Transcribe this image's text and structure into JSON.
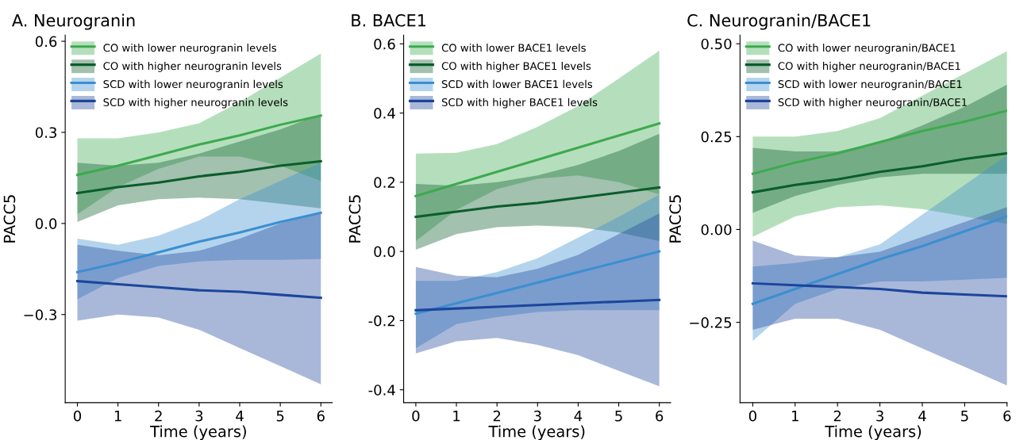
{
  "chart_data": [
    {
      "type": "line",
      "title": "A. Neurogranin",
      "xlabel": "Time (years)",
      "ylabel": "PACC5",
      "x": [
        0,
        1,
        2,
        3,
        4,
        5,
        6
      ],
      "xlim": [
        -0.3,
        6.28
      ],
      "xticks": [
        0,
        1,
        2,
        3,
        4,
        5,
        6
      ],
      "ylim": [
        -0.59,
        0.62
      ],
      "yticks": [
        {
          "value": 0.6,
          "label": "0.6"
        },
        {
          "value": 0.3,
          "label": "0.3"
        },
        {
          "value": 0.0,
          "label": "0.0"
        },
        {
          "value": -0.3,
          "label": "−0.3"
        }
      ],
      "legend": "top left",
      "grid": false,
      "series": [
        {
          "name": "CO with lower neurogranin levels",
          "color": "#3daa4f",
          "values": [
            0.16,
            0.19,
            0.225,
            0.26,
            0.29,
            0.325,
            0.355
          ],
          "lower": [
            0.03,
            0.12,
            0.18,
            0.22,
            0.22,
            0.19,
            0.14
          ],
          "upper": [
            0.28,
            0.28,
            0.3,
            0.33,
            0.4,
            0.48,
            0.56
          ]
        },
        {
          "name": "CO with higher neurogranin levels",
          "color": "#0b5d2c",
          "values": [
            0.1,
            0.12,
            0.135,
            0.155,
            0.17,
            0.19,
            0.205
          ],
          "lower": [
            0.005,
            0.06,
            0.08,
            0.085,
            0.08,
            0.065,
            0.05
          ],
          "upper": [
            0.2,
            0.19,
            0.2,
            0.23,
            0.27,
            0.31,
            0.36
          ]
        },
        {
          "name": "SCD with lower neurogranin levels",
          "color": "#3b8fd0",
          "values": [
            -0.16,
            -0.13,
            -0.095,
            -0.06,
            -0.03,
            0.005,
            0.035
          ],
          "lower": [
            -0.25,
            -0.18,
            -0.14,
            -0.125,
            -0.12,
            -0.12,
            -0.117
          ],
          "upper": [
            -0.05,
            -0.07,
            -0.04,
            0.01,
            0.08,
            0.14,
            0.2
          ]
        },
        {
          "name": "SCD with higher neurogranin levels",
          "color": "#1c459c",
          "values": [
            -0.19,
            -0.2,
            -0.21,
            -0.22,
            -0.225,
            -0.235,
            -0.245
          ],
          "lower": [
            -0.32,
            -0.3,
            -0.31,
            -0.35,
            -0.41,
            -0.47,
            -0.53
          ],
          "upper": [
            -0.07,
            -0.09,
            -0.105,
            -0.09,
            -0.05,
            0.0,
            0.04
          ]
        }
      ]
    },
    {
      "type": "line",
      "title": "B. BACE1",
      "xlabel": "Time (years)",
      "ylabel": "PACC5",
      "x": [
        0,
        1,
        2,
        3,
        4,
        5,
        6
      ],
      "xlim": [
        -0.3,
        6.28
      ],
      "xticks": [
        0,
        1,
        2,
        3,
        4,
        5,
        6
      ],
      "ylim": [
        -0.437,
        0.625
      ],
      "yticks": [
        {
          "value": 0.6,
          "label": "0.6"
        },
        {
          "value": 0.4,
          "label": "0.4"
        },
        {
          "value": 0.2,
          "label": "0.2"
        },
        {
          "value": 0.0,
          "label": "0.0"
        },
        {
          "value": -0.2,
          "label": "-0.2"
        },
        {
          "value": -0.4,
          "label": "-0.4"
        }
      ],
      "legend": "top left",
      "grid": false,
      "series": [
        {
          "name": "CO with lower BACE1 levels",
          "color": "#3daa4f",
          "values": [
            0.16,
            0.195,
            0.23,
            0.265,
            0.3,
            0.335,
            0.37
          ],
          "lower": [
            0.03,
            0.12,
            0.18,
            0.21,
            0.22,
            0.2,
            0.165
          ],
          "upper": [
            0.283,
            0.285,
            0.31,
            0.36,
            0.42,
            0.5,
            0.58
          ]
        },
        {
          "name": "CO with higher BACE1 levels",
          "color": "#0b5d2c",
          "values": [
            0.1,
            0.115,
            0.13,
            0.14,
            0.155,
            0.17,
            0.185
          ],
          "lower": [
            0.005,
            0.05,
            0.07,
            0.075,
            0.07,
            0.055,
            0.03
          ],
          "upper": [
            0.195,
            0.19,
            0.2,
            0.22,
            0.25,
            0.29,
            0.34
          ]
        },
        {
          "name": "SCD with lower BACE1 levels",
          "color": "#3b8fd0",
          "values": [
            -0.18,
            -0.15,
            -0.12,
            -0.09,
            -0.06,
            -0.03,
            0.0
          ],
          "lower": [
            -0.28,
            -0.21,
            -0.19,
            -0.175,
            -0.17,
            -0.17,
            -0.17
          ],
          "upper": [
            -0.085,
            -0.085,
            -0.06,
            -0.02,
            0.04,
            0.1,
            0.165
          ]
        },
        {
          "name": "SCD with higher BACE1 levels",
          "color": "#1c459c",
          "values": [
            -0.17,
            -0.165,
            -0.16,
            -0.155,
            -0.15,
            -0.145,
            -0.14
          ],
          "lower": [
            -0.295,
            -0.26,
            -0.25,
            -0.27,
            -0.3,
            -0.345,
            -0.39
          ],
          "upper": [
            -0.045,
            -0.07,
            -0.075,
            -0.05,
            -0.01,
            0.05,
            0.11
          ]
        }
      ]
    },
    {
      "type": "line",
      "title": "C. Neurogranin/BACE1",
      "xlabel": "Time (years)",
      "ylabel": "PACC5",
      "x": [
        0,
        1,
        2,
        3,
        4,
        5,
        6
      ],
      "xlim": [
        -0.3,
        6.0
      ],
      "xticks": [
        0,
        1,
        2,
        3,
        4,
        5,
        6
      ],
      "ylim": [
        -0.466,
        0.523
      ],
      "yticks": [
        {
          "value": 0.5,
          "label": "0.50"
        },
        {
          "value": 0.25,
          "label": "0.25"
        },
        {
          "value": 0.0,
          "label": "0.00"
        },
        {
          "value": -0.25,
          "label": "−0.25"
        }
      ],
      "legend": "top left",
      "grid": false,
      "series": [
        {
          "name": "CO with lower neurogranin/BACE1",
          "color": "#3daa4f",
          "values": [
            0.15,
            0.18,
            0.205,
            0.235,
            0.265,
            0.29,
            0.32
          ],
          "lower": [
            -0.02,
            0.035,
            0.06,
            0.065,
            0.055,
            0.035,
            0.015
          ],
          "upper": [
            0.25,
            0.25,
            0.265,
            0.3,
            0.36,
            0.42,
            0.48
          ]
        },
        {
          "name": "CO with higher neurogranin/BACE1",
          "color": "#0b5d2c",
          "values": [
            0.1,
            0.12,
            0.135,
            0.155,
            0.17,
            0.19,
            0.205
          ],
          "lower": [
            0.045,
            0.09,
            0.12,
            0.14,
            0.15,
            0.15,
            0.15
          ],
          "upper": [
            0.22,
            0.21,
            0.21,
            0.235,
            0.28,
            0.33,
            0.39
          ]
        },
        {
          "name": "SCD with lower neurogranin/BACE1",
          "color": "#3b8fd0",
          "values": [
            -0.2,
            -0.16,
            -0.12,
            -0.08,
            -0.045,
            -0.005,
            0.035
          ],
          "lower": [
            -0.3,
            -0.2,
            -0.16,
            -0.14,
            -0.14,
            -0.135,
            -0.13
          ],
          "upper": [
            -0.1,
            -0.09,
            -0.075,
            -0.04,
            0.04,
            0.12,
            0.2
          ]
        },
        {
          "name": "SCD with higher neurogranin/BACE1",
          "color": "#1c459c",
          "values": [
            -0.145,
            -0.15,
            -0.155,
            -0.16,
            -0.17,
            -0.175,
            -0.18
          ],
          "lower": [
            -0.27,
            -0.24,
            -0.24,
            -0.27,
            -0.32,
            -0.37,
            -0.42
          ],
          "upper": [
            -0.03,
            -0.07,
            -0.075,
            -0.06,
            -0.02,
            0.02,
            0.06
          ]
        }
      ]
    }
  ]
}
